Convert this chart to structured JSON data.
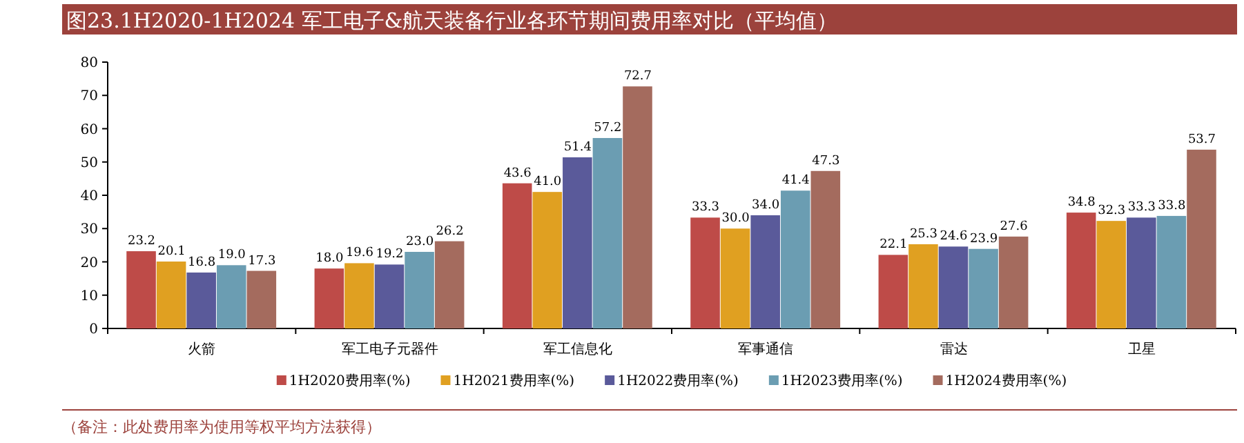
{
  "chart_data": {
    "type": "bar",
    "title": "图23.1H2020-1H2024 军工电子&航天装备行业各环节期间费用率对比（平均值）",
    "categories": [
      "火箭",
      "军工电子元器件",
      "军工信息化",
      "军事通信",
      "雷达",
      "卫星"
    ],
    "series": [
      {
        "name": "1H2020费用率(%)",
        "color": "#be4b48",
        "values": [
          23.2,
          18.0,
          43.6,
          33.3,
          22.1,
          34.8
        ]
      },
      {
        "name": "1H2021费用率(%)",
        "color": "#e0a021",
        "values": [
          20.1,
          19.6,
          41.0,
          30.0,
          25.3,
          32.3
        ]
      },
      {
        "name": "1H2022费用率(%)",
        "color": "#5a5a9a",
        "values": [
          16.8,
          19.2,
          51.4,
          34.0,
          24.6,
          33.3
        ]
      },
      {
        "name": "1H2023费用率(%)",
        "color": "#6b9db2",
        "values": [
          19.0,
          23.0,
          57.2,
          41.4,
          23.9,
          33.8
        ]
      },
      {
        "name": "1H2024费用率(%)",
        "color": "#a46b5e",
        "values": [
          17.3,
          26.2,
          72.7,
          47.3,
          27.6,
          53.7
        ]
      }
    ],
    "value_labels": [
      [
        "23.2",
        "18.0",
        "43.6",
        "33.3",
        "22.1",
        "34.8"
      ],
      [
        "20.1",
        "19.6",
        "41.0",
        "30.0",
        "25.3",
        "32.3"
      ],
      [
        "16.8",
        "19.2",
        "51.4",
        "34.0",
        "24.6",
        "33.3"
      ],
      [
        "19.0",
        "23.0",
        "57.2",
        "41.4",
        "23.9",
        "33.8"
      ],
      [
        "17.3",
        "26.2",
        "72.7",
        "47.3",
        "27.6",
        "53.7"
      ]
    ],
    "ylim": [
      0,
      80
    ],
    "yticks": [
      0,
      10,
      20,
      30,
      40,
      50,
      60,
      70,
      80
    ],
    "grid": false,
    "legend": "bottom",
    "annotations": [
      "（备注：此处费用率为使用等权平均方法获得）"
    ]
  }
}
